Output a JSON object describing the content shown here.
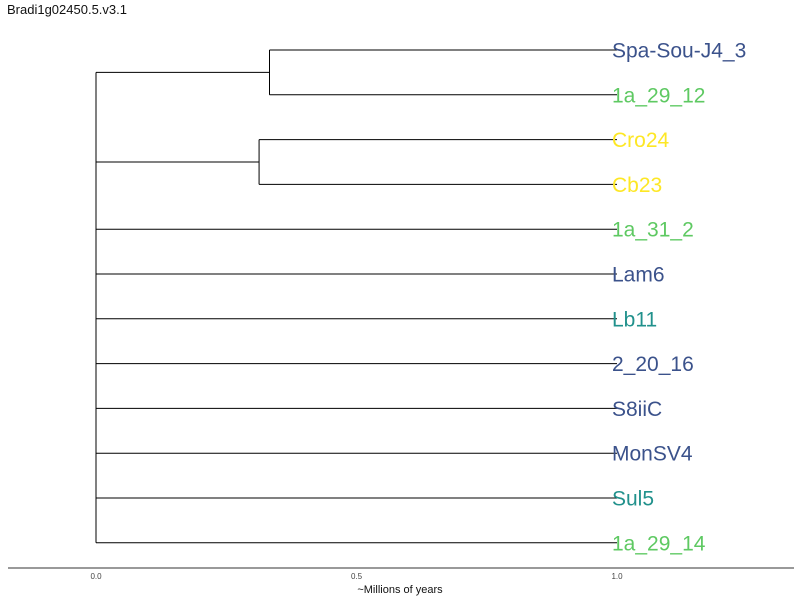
{
  "title": "Bradi1g02450.5.v3.1",
  "axis": {
    "label": "~Millions of years",
    "ticks": [
      "0.0",
      "0.5",
      "1.0"
    ]
  },
  "colors": {
    "group_dark_blue": "#3b528b",
    "group_teal": "#21918c",
    "group_green": "#5ec962",
    "group_yellow": "#fde725",
    "branch": "#000000"
  },
  "leaves": [
    {
      "name": "Spa-Sou-J4_3",
      "color": "#3b528b"
    },
    {
      "name": "1a_29_12",
      "color": "#5ec962"
    },
    {
      "name": "Cro24",
      "color": "#fde725"
    },
    {
      "name": "Cb23",
      "color": "#fde725"
    },
    {
      "name": "1a_31_2",
      "color": "#5ec962"
    },
    {
      "name": "Lam6",
      "color": "#3b528b"
    },
    {
      "name": "Lb11",
      "color": "#21918c"
    },
    {
      "name": "2_20_16",
      "color": "#3b528b"
    },
    {
      "name": "S8iiC",
      "color": "#3b528b"
    },
    {
      "name": "MonSV4",
      "color": "#3b528b"
    },
    {
      "name": "Sul5",
      "color": "#21918c"
    },
    {
      "name": "1a_29_14",
      "color": "#5ec962"
    }
  ],
  "tree": {
    "root_height": 1.0,
    "clades": [
      {
        "leaves": [
          0,
          1
        ],
        "node_time": 0.667
      },
      {
        "leaves": [
          2,
          3
        ],
        "node_time": 0.687
      },
      {
        "leaves": [
          4
        ]
      },
      {
        "leaves": [
          5
        ]
      },
      {
        "leaves": [
          6
        ]
      },
      {
        "leaves": [
          7
        ]
      },
      {
        "leaves": [
          8
        ]
      },
      {
        "leaves": [
          9
        ]
      },
      {
        "leaves": [
          10
        ]
      },
      {
        "leaves": [
          11
        ]
      }
    ]
  }
}
